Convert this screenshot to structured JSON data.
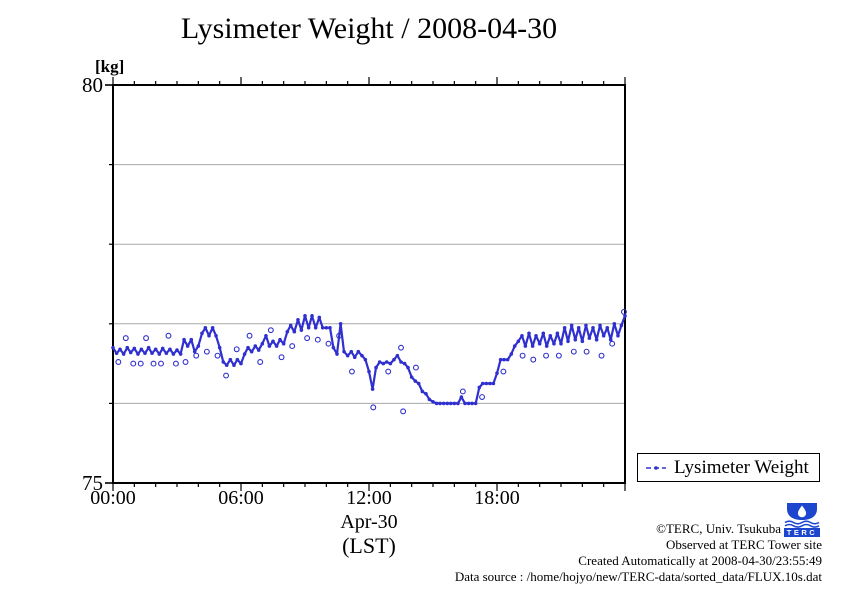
{
  "title": "Lysimeter Weight / 2008-04-30",
  "axes": {
    "y_unit_label": "[kg]",
    "y_top_label": "80",
    "y_bottom_label": "75",
    "x_tick_labels": [
      "00:00",
      "06:00",
      "12:00",
      "18:00"
    ],
    "x_date_label": "Apr-30",
    "x_tz_label": "(LST)"
  },
  "legend": {
    "label": "Lysimeter Weight"
  },
  "footer": {
    "line1": "©TERC, Univ. Tsukuba",
    "line2": "Observed at TERC Tower site",
    "line3": "Created Automatically at 2008-04-30/23:55:49",
    "line4": "Data source : /home/hojyo/new/TERC-data/sorted_data/FLUX.10s.dat",
    "logo_text": "TERC"
  },
  "colors": {
    "series": "#3030d0",
    "grid": "#a8a8a8",
    "frame": "#000000",
    "logo_blue": "#1d46cf"
  },
  "chart_data": {
    "type": "line",
    "title": "Lysimeter Weight / 2008-04-30",
    "xlabel": "Apr-30 (LST)",
    "ylabel": "[kg]",
    "ylim": [
      75,
      80
    ],
    "xlim_hours": [
      0,
      24
    ],
    "x_major_ticks_hours": [
      0,
      6,
      12,
      18,
      24
    ],
    "x_minor_tick_interval_hours": 1,
    "gridlines_kg": [
      76,
      77,
      78,
      79
    ],
    "grid": true,
    "legend_position": "bottom-right-outside",
    "series_name": "Lysimeter Weight",
    "points_hour_kg": [
      [
        0,
        76.7
      ],
      [
        0.17,
        76.63
      ],
      [
        0.33,
        76.68
      ],
      [
        0.5,
        76.62
      ],
      [
        0.67,
        76.7
      ],
      [
        0.83,
        76.64
      ],
      [
        1,
        76.69
      ],
      [
        1.17,
        76.62
      ],
      [
        1.33,
        76.68
      ],
      [
        1.5,
        76.63
      ],
      [
        1.67,
        76.7
      ],
      [
        1.83,
        76.63
      ],
      [
        2,
        76.68
      ],
      [
        2.17,
        76.62
      ],
      [
        2.33,
        76.69
      ],
      [
        2.5,
        76.63
      ],
      [
        2.67,
        76.68
      ],
      [
        2.83,
        76.62
      ],
      [
        3,
        76.67
      ],
      [
        3.17,
        76.62
      ],
      [
        3.33,
        76.8
      ],
      [
        3.5,
        76.72
      ],
      [
        3.67,
        76.8
      ],
      [
        3.83,
        76.65
      ],
      [
        4,
        76.72
      ],
      [
        4.17,
        76.88
      ],
      [
        4.33,
        76.95
      ],
      [
        4.5,
        76.85
      ],
      [
        4.67,
        76.95
      ],
      [
        4.83,
        76.85
      ],
      [
        5,
        76.7
      ],
      [
        5.17,
        76.52
      ],
      [
        5.33,
        76.48
      ],
      [
        5.5,
        76.55
      ],
      [
        5.67,
        76.48
      ],
      [
        5.83,
        76.55
      ],
      [
        6,
        76.5
      ],
      [
        6.17,
        76.62
      ],
      [
        6.33,
        76.7
      ],
      [
        6.5,
        76.65
      ],
      [
        6.67,
        76.72
      ],
      [
        6.83,
        76.67
      ],
      [
        7,
        76.75
      ],
      [
        7.17,
        76.85
      ],
      [
        7.33,
        76.72
      ],
      [
        7.5,
        76.78
      ],
      [
        7.67,
        76.72
      ],
      [
        7.83,
        76.8
      ],
      [
        8,
        76.75
      ],
      [
        8.17,
        76.9
      ],
      [
        8.33,
        76.98
      ],
      [
        8.5,
        76.9
      ],
      [
        8.67,
        77.05
      ],
      [
        8.83,
        76.92
      ],
      [
        9,
        77.1
      ],
      [
        9.17,
        76.95
      ],
      [
        9.33,
        77.1
      ],
      [
        9.5,
        76.95
      ],
      [
        9.67,
        77.08
      ],
      [
        9.83,
        76.95
      ],
      [
        10,
        76.95
      ],
      [
        10.17,
        76.95
      ],
      [
        10.33,
        76.7
      ],
      [
        10.5,
        76.62
      ],
      [
        10.67,
        77
      ],
      [
        10.83,
        76.65
      ],
      [
        11,
        76.6
      ],
      [
        11.17,
        76.65
      ],
      [
        11.33,
        76.58
      ],
      [
        11.5,
        76.65
      ],
      [
        11.67,
        76.6
      ],
      [
        11.83,
        76.55
      ],
      [
        12,
        76.4
      ],
      [
        12.17,
        76.18
      ],
      [
        12.33,
        76.45
      ],
      [
        12.5,
        76.52
      ],
      [
        12.67,
        76.5
      ],
      [
        12.83,
        76.52
      ],
      [
        13,
        76.5
      ],
      [
        13.17,
        76.55
      ],
      [
        13.33,
        76.6
      ],
      [
        13.5,
        76.52
      ],
      [
        13.67,
        76.5
      ],
      [
        13.83,
        76.45
      ],
      [
        14,
        76.33
      ],
      [
        14.17,
        76.28
      ],
      [
        14.33,
        76.25
      ],
      [
        14.5,
        76.15
      ],
      [
        14.67,
        76.12
      ],
      [
        14.83,
        76.05
      ],
      [
        15,
        76.02
      ],
      [
        15.17,
        76
      ],
      [
        15.33,
        76
      ],
      [
        15.5,
        76
      ],
      [
        15.67,
        76
      ],
      [
        15.83,
        76
      ],
      [
        16,
        76
      ],
      [
        16.17,
        76
      ],
      [
        16.33,
        76.08
      ],
      [
        16.5,
        76
      ],
      [
        16.67,
        76
      ],
      [
        16.83,
        76
      ],
      [
        17,
        76
      ],
      [
        17.17,
        76.2
      ],
      [
        17.33,
        76.25
      ],
      [
        17.5,
        76.25
      ],
      [
        17.67,
        76.25
      ],
      [
        17.83,
        76.25
      ],
      [
        18,
        76.38
      ],
      [
        18.17,
        76.55
      ],
      [
        18.33,
        76.55
      ],
      [
        18.5,
        76.55
      ],
      [
        18.67,
        76.62
      ],
      [
        18.83,
        76.72
      ],
      [
        19,
        76.78
      ],
      [
        19.17,
        76.85
      ],
      [
        19.33,
        76.72
      ],
      [
        19.5,
        76.88
      ],
      [
        19.67,
        76.72
      ],
      [
        19.83,
        76.85
      ],
      [
        20,
        76.75
      ],
      [
        20.17,
        76.88
      ],
      [
        20.33,
        76.72
      ],
      [
        20.5,
        76.85
      ],
      [
        20.67,
        76.75
      ],
      [
        20.83,
        76.88
      ],
      [
        21,
        76.75
      ],
      [
        21.17,
        76.95
      ],
      [
        21.33,
        76.78
      ],
      [
        21.5,
        76.98
      ],
      [
        21.67,
        76.8
      ],
      [
        21.83,
        76.95
      ],
      [
        22,
        76.78
      ],
      [
        22.17,
        76.98
      ],
      [
        22.33,
        76.82
      ],
      [
        22.5,
        76.95
      ],
      [
        22.67,
        76.8
      ],
      [
        22.83,
        76.98
      ],
      [
        23,
        76.85
      ],
      [
        23.17,
        76.95
      ],
      [
        23.33,
        76.8
      ],
      [
        23.5,
        77
      ],
      [
        23.67,
        76.85
      ],
      [
        23.83,
        76.98
      ],
      [
        24,
        77.1
      ]
    ],
    "outliers_hour_kg": [
      [
        0.25,
        76.52
      ],
      [
        0.6,
        76.82
      ],
      [
        0.95,
        76.5
      ],
      [
        1.3,
        76.5
      ],
      [
        1.55,
        76.82
      ],
      [
        1.9,
        76.5
      ],
      [
        2.25,
        76.5
      ],
      [
        2.6,
        76.85
      ],
      [
        2.95,
        76.5
      ],
      [
        3.4,
        76.52
      ],
      [
        3.9,
        76.6
      ],
      [
        4.4,
        76.65
      ],
      [
        4.9,
        76.6
      ],
      [
        5.3,
        76.35
      ],
      [
        5.8,
        76.68
      ],
      [
        6.4,
        76.85
      ],
      [
        6.9,
        76.52
      ],
      [
        7.4,
        76.92
      ],
      [
        7.9,
        76.58
      ],
      [
        8.4,
        76.72
      ],
      [
        9.1,
        76.82
      ],
      [
        9.6,
        76.8
      ],
      [
        10.1,
        76.75
      ],
      [
        10.6,
        76.85
      ],
      [
        11.2,
        76.4
      ],
      [
        12.2,
        75.95
      ],
      [
        12.9,
        76.4
      ],
      [
        13.5,
        76.7
      ],
      [
        13.6,
        75.9
      ],
      [
        14.2,
        76.45
      ],
      [
        16.4,
        76.15
      ],
      [
        17.3,
        76.08
      ],
      [
        18.3,
        76.4
      ],
      [
        19.2,
        76.6
      ],
      [
        19.7,
        76.55
      ],
      [
        20.3,
        76.6
      ],
      [
        20.9,
        76.6
      ],
      [
        21.6,
        76.65
      ],
      [
        22.2,
        76.65
      ],
      [
        22.9,
        76.6
      ],
      [
        23.4,
        76.75
      ],
      [
        23.95,
        77.15
      ]
    ]
  }
}
